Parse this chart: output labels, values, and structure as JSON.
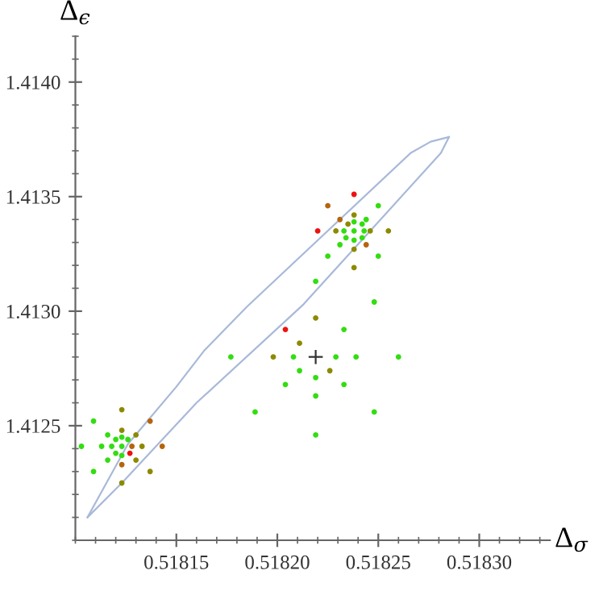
{
  "chart_data": {
    "type": "scatter",
    "xlabel": "Δ$_{σ}$",
    "ylabel": "Δ$_{ϵ}$",
    "xlim": [
      0.5181,
      0.518335
    ],
    "ylim": [
      1.412,
      1.4142
    ],
    "xticks": [
      0.51815,
      {
        "value": 0.5182,
        "label": "0.51820"
      },
      0.51825,
      {
        "value": 0.5183,
        "label": "0.51830"
      }
    ],
    "yticks": [
      1.4125,
      {
        "value": 1.413,
        "label": "1.4130"
      },
      1.4135,
      {
        "value": 1.414,
        "label": "1.4140"
      }
    ],
    "grid": false,
    "marker": "circle",
    "series": [
      {
        "type": "line",
        "color": "#a9b9d9",
        "marker": "none",
        "x": [
          0.518106,
          0.518126,
          0.51815,
          0.518164,
          0.518185,
          0.518266,
          0.518276,
          0.518285
        ],
        "values": [
          1.4121,
          1.41242,
          1.41267,
          1.41283,
          1.41302,
          1.41369,
          1.41374,
          1.41376
        ]
      },
      {
        "type": "line",
        "color": "#a9b9d9",
        "marker": "none",
        "x": [
          0.518106,
          0.518123,
          0.51816,
          0.518213,
          0.518281,
          0.518285
        ],
        "values": [
          1.4121,
          1.41225,
          1.4126,
          1.41303,
          1.41369,
          1.41376
        ]
      },
      {
        "color": "#33dd11",
        "x": [
          0.51825,
          0.518244,
          0.518231,
          0.518225,
          0.51825,
          0.518219,
          0.518248,
          0.518238,
          0.518233,
          0.518243,
          0.518238,
          0.518238,
          0.518242,
          0.518234,
          0.518242,
          0.518233,
          0.518208,
          0.518229,
          0.518239,
          0.51826,
          0.518211,
          0.518219,
          0.518204,
          0.518233,
          0.518219,
          0.518248,
          0.518219,
          0.518177,
          0.518189,
          0.518123,
          0.518109,
          0.518116,
          0.518103,
          0.518113,
          0.518116,
          0.518109,
          0.518118,
          0.518123,
          0.518123,
          0.51812,
          0.518126,
          0.51812
        ],
        "values": [
          1.41346,
          1.4134,
          1.41329,
          1.41324,
          1.41324,
          1.41313,
          1.41304,
          1.41335,
          1.41335,
          1.41335,
          1.41339,
          1.41331,
          1.41338,
          1.41332,
          1.41332,
          1.41292,
          1.4128,
          1.4128,
          1.4128,
          1.4128,
          1.41274,
          1.41271,
          1.41268,
          1.41268,
          1.41263,
          1.41256,
          1.41246,
          1.4128,
          1.41256,
          1.41241,
          1.41252,
          1.41246,
          1.41241,
          1.41241,
          1.41235,
          1.4123,
          1.41241,
          1.41245,
          1.41237,
          1.41244,
          1.41244,
          1.41238
        ]
      },
      {
        "color": "#8c8a00",
        "x": [
          0.518238,
          0.518235,
          0.518229,
          0.518246,
          0.518255,
          0.518238,
          0.518238,
          0.518219,
          0.518211,
          0.518198,
          0.518226,
          0.518123,
          0.518123,
          0.51813,
          0.518133,
          0.51813,
          0.518137,
          0.518123
        ],
        "values": [
          1.41342,
          1.41338,
          1.41335,
          1.41335,
          1.41335,
          1.41327,
          1.41319,
          1.41297,
          1.41286,
          1.4128,
          1.41274,
          1.41257,
          1.41248,
          1.41246,
          1.41241,
          1.41235,
          1.4123,
          1.41225
        ]
      },
      {
        "color": "#b5650f",
        "x": [
          0.518225,
          0.518231,
          0.518244,
          0.518137,
          0.518143,
          0.518128,
          0.518123
        ],
        "values": [
          1.41346,
          1.4134,
          1.41329,
          1.41252,
          1.41241,
          1.41241,
          1.41233
        ]
      },
      {
        "color": "#ee1111",
        "x": [
          0.518238,
          0.51822,
          0.518204,
          0.518127
        ],
        "values": [
          1.41351,
          1.41335,
          1.41292,
          1.41238
        ]
      },
      {
        "color": "#333333",
        "marker": "cross",
        "x": [
          0.518219
        ],
        "values": [
          1.4128
        ]
      }
    ]
  }
}
